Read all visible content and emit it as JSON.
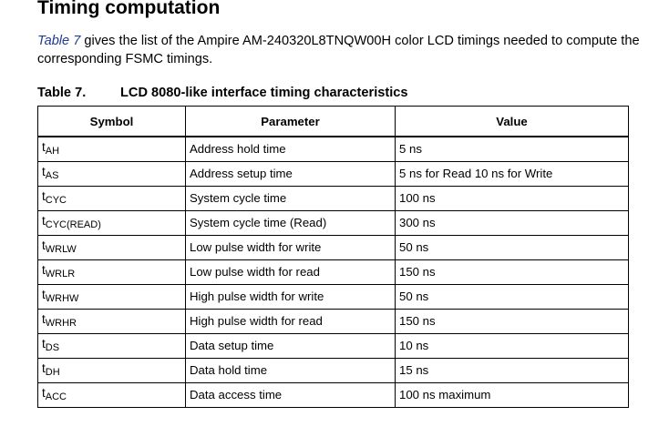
{
  "heading": "Timing computation",
  "intro": {
    "ref": "Table 7",
    "text": " gives the list of the Ampire AM-240320L8TNQW00H color LCD timings needed to compute the corresponding FSMC timings."
  },
  "caption": {
    "label": "Table 7.",
    "title": "LCD 8080-like interface timing characteristics"
  },
  "table": {
    "headers": [
      "Symbol",
      "Parameter",
      "Value"
    ],
    "rows": [
      {
        "symbol_base": "t",
        "symbol_sub": "AH",
        "parameter": "Address hold time",
        "value": "5 ns"
      },
      {
        "symbol_base": "t",
        "symbol_sub": "AS",
        "parameter": "Address setup time",
        "value": "5 ns for Read 10 ns for Write"
      },
      {
        "symbol_base": "t",
        "symbol_sub": "CYC",
        "parameter": "System cycle time",
        "value": "100 ns"
      },
      {
        "symbol_base": "t",
        "symbol_sub": "CYC(READ)",
        "parameter": "System cycle time (Read)",
        "value": "300 ns"
      },
      {
        "symbol_base": "t",
        "symbol_sub": "WRLW",
        "parameter": "Low pulse width for write",
        "value": "50 ns"
      },
      {
        "symbol_base": "t",
        "symbol_sub": "WRLR",
        "parameter": "Low pulse width for read",
        "value": "150 ns"
      },
      {
        "symbol_base": "t",
        "symbol_sub": "WRHW",
        "parameter": "High pulse width for write",
        "value": "50 ns"
      },
      {
        "symbol_base": "t",
        "symbol_sub": "WRHR",
        "parameter": "High pulse width for read",
        "value": "150 ns"
      },
      {
        "symbol_base": "t",
        "symbol_sub": "DS",
        "parameter": "Data setup time",
        "value": "10 ns"
      },
      {
        "symbol_base": "t",
        "symbol_sub": "DH",
        "parameter": "Data hold time",
        "value": "15 ns"
      },
      {
        "symbol_base": "t",
        "symbol_sub": "ACC",
        "parameter": "Data access time",
        "value": "100 ns maximum"
      }
    ]
  },
  "colors": {
    "link": "#1f3c96",
    "text": "#000000"
  }
}
